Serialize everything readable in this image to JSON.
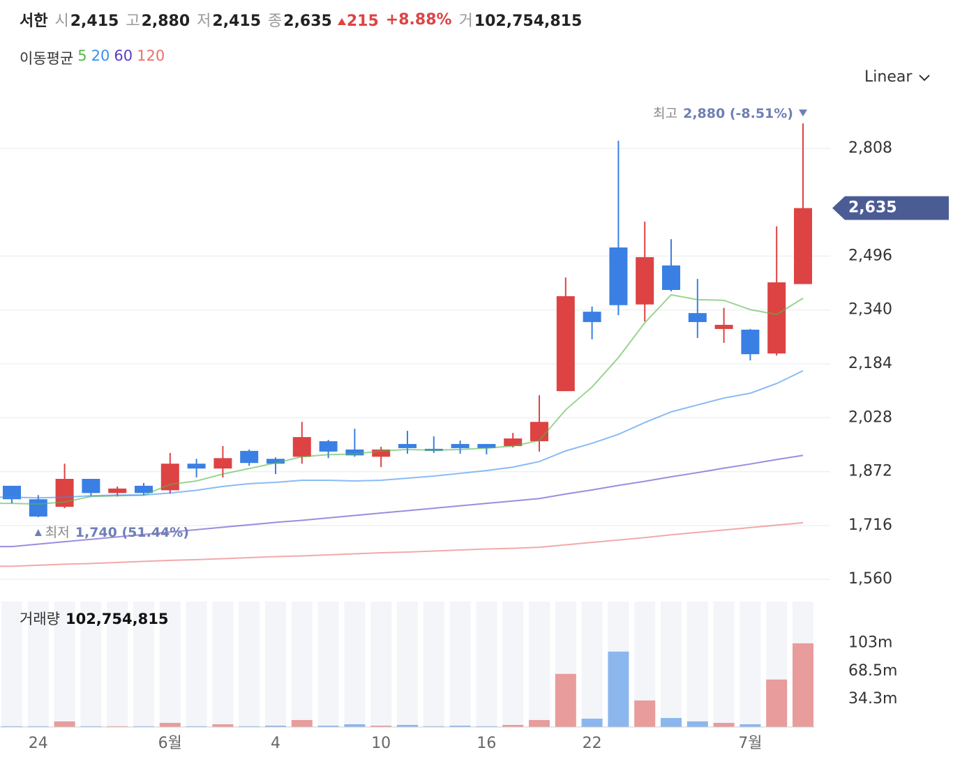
{
  "header": {
    "name": "서한",
    "items": [
      {
        "label": "시",
        "value": "2,415"
      },
      {
        "label": "고",
        "value": "2,880"
      },
      {
        "label": "저",
        "value": "2,415"
      },
      {
        "label": "종",
        "value": "2,635"
      }
    ],
    "change": "215",
    "change_pct": "+8.88%",
    "volume_label": "거",
    "volume": "102,754,815"
  },
  "scale_menu": "Linear",
  "chart_data": [
    {
      "type": "candlestick",
      "legend_title": "이동평균",
      "open": [
        1831,
        1792,
        1770,
        1851,
        1810,
        1831,
        1818,
        1895,
        1881,
        1932,
        1909,
        1915,
        1960,
        1936,
        1915,
        1952,
        1938,
        1952,
        1952,
        1946,
        1960,
        2105,
        2335,
        2521,
        2356,
        2469,
        2331,
        2285,
        2283,
        2214,
        2415
      ],
      "high": [
        1831,
        1804,
        1895,
        1851,
        1829,
        1839,
        1926,
        1909,
        1946,
        1936,
        1913,
        2016,
        1964,
        1996,
        1944,
        1990,
        1974,
        1962,
        1952,
        1984,
        2093,
        2434,
        2350,
        2830,
        2596,
        2545,
        2430,
        2346,
        2285,
        2582,
        2880
      ],
      "low": [
        1780,
        1740,
        1766,
        1800,
        1800,
        1804,
        1808,
        1855,
        1855,
        1889,
        1865,
        1895,
        1911,
        1915,
        1885,
        1924,
        1926,
        1924,
        1922,
        1942,
        1930,
        2105,
        2255,
        2325,
        2307,
        2394,
        2259,
        2245,
        2194,
        2208,
        2415
      ],
      "close": [
        1792,
        1742,
        1851,
        1810,
        1823,
        1810,
        1895,
        1881,
        1911,
        1897,
        1895,
        1972,
        1930,
        1919,
        1936,
        1940,
        1932,
        1940,
        1940,
        1968,
        2016,
        2380,
        2305,
        2354,
        2493,
        2398,
        2305,
        2297,
        2212,
        2420,
        2635
      ],
      "up_color": "#dd4343",
      "down_color": "#3a7fe3",
      "moving_averages": [
        {
          "name": "5",
          "color": "#55b848",
          "values": [
            1780,
            1778,
            1784,
            1800,
            1802,
            1804,
            1835,
            1845,
            1865,
            1881,
            1897,
            1915,
            1921,
            1923,
            1932,
            1936,
            1934,
            1936,
            1940,
            1946,
            1962,
            2051,
            2117,
            2202,
            2303,
            2384,
            2370,
            2368,
            2341,
            2327,
            2374
          ]
        },
        {
          "name": "20",
          "color": "#3b8ef0",
          "values": [
            1798,
            1796,
            1798,
            1802,
            1804,
            1804,
            1810,
            1818,
            1829,
            1837,
            1841,
            1847,
            1847,
            1845,
            1847,
            1853,
            1859,
            1867,
            1875,
            1885,
            1901,
            1932,
            1954,
            1980,
            2014,
            2045,
            2065,
            2085,
            2099,
            2127,
            2164
          ]
        },
        {
          "name": "60",
          "color": "#5a3fc6",
          "values": [
            1655,
            1662,
            1669,
            1676,
            1683,
            1690,
            1697,
            1704,
            1711,
            1718,
            1725,
            1731,
            1738,
            1745,
            1752,
            1759,
            1766,
            1773,
            1780,
            1787,
            1794,
            1807,
            1819,
            1832,
            1844,
            1857,
            1869,
            1882,
            1894,
            1907,
            1919
          ]
        },
        {
          "name": "120",
          "color": "#ea6f6f",
          "values": [
            1598,
            1601,
            1604,
            1606,
            1609,
            1612,
            1615,
            1617,
            1620,
            1623,
            1626,
            1628,
            1631,
            1634,
            1637,
            1639,
            1642,
            1645,
            1648,
            1650,
            1653,
            1660,
            1667,
            1674,
            1681,
            1689,
            1696,
            1703,
            1710,
            1717,
            1724
          ]
        }
      ],
      "ylim": [
        1522,
        2955
      ],
      "yticks": [
        {
          "value": 1560,
          "label": "1,560"
        },
        {
          "value": 1716,
          "label": "1,716"
        },
        {
          "value": 1872,
          "label": "1,872"
        },
        {
          "value": 2028,
          "label": "2,028"
        },
        {
          "value": 2184,
          "label": "2,184"
        },
        {
          "value": 2340,
          "label": "2,340"
        },
        {
          "value": 2496,
          "label": "2,496"
        },
        {
          "value": 2808,
          "label": "2,808"
        }
      ],
      "grid": true,
      "current_value": 2635,
      "current_label": "2,635",
      "max_annotation": {
        "label": "최고",
        "value_label": "2,880 (-8.51%)"
      },
      "min_annotation": {
        "label": "최저",
        "value_label": "1,740 (51.44%)"
      }
    },
    {
      "type": "bar",
      "title": "거래량",
      "title_value": "102,754,815",
      "categories": [
        null,
        "24",
        null,
        null,
        null,
        null,
        "6월",
        null,
        null,
        null,
        "4",
        null,
        null,
        null,
        "10",
        null,
        null,
        null,
        "16",
        null,
        null,
        null,
        "22",
        null,
        null,
        null,
        null,
        null,
        "7월",
        null,
        null
      ],
      "values": [
        1.0,
        1.0,
        6.9,
        1.0,
        1.0,
        1.0,
        5.1,
        1.0,
        3.4,
        1.0,
        1.7,
        8.6,
        1.7,
        3.4,
        1.7,
        2.6,
        1.0,
        1.7,
        1.0,
        2.6,
        8.6,
        65.2,
        10.3,
        92.6,
        32.6,
        11.1,
        6.9,
        5.1,
        3.4,
        58.3,
        102.75
      ],
      "up_color": "#e89c9c",
      "down_color": "#8cb6ee",
      "ylim": [
        0,
        154
      ],
      "yticks": [
        {
          "value": 34.3,
          "label": "34.3m"
        },
        {
          "value": 68.5,
          "label": "68.5m"
        },
        {
          "value": 103,
          "label": "103m"
        }
      ]
    }
  ]
}
